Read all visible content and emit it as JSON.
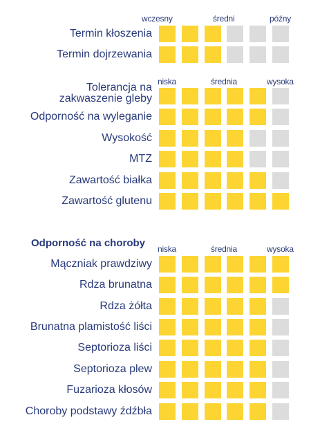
{
  "colors": {
    "filled": "#fcd533",
    "empty": "#dcdcdc",
    "text": "#283a7a"
  },
  "scales": {
    "term": {
      "low": "wczesny",
      "mid": "średni",
      "high": "późny"
    },
    "level": {
      "low": "niska",
      "mid": "średnia",
      "high": "wysoka"
    },
    "disease": {
      "low": "niska",
      "mid": "średnia",
      "high": "wysoka"
    }
  },
  "section_title": "Odporność na choroby",
  "max_score": 6,
  "term_rows": [
    {
      "label": "Termin kłoszenia",
      "score": 3
    },
    {
      "label": "Termin dojrzewania",
      "score": 3
    }
  ],
  "trait_rows": [
    {
      "label_line1": "Tolerancja na",
      "label_line2": "zakwaszenie gleby",
      "score": 5
    },
    {
      "label": "Odporność na wyleganie",
      "score": 5
    },
    {
      "label": "Wysokość",
      "score": 4
    },
    {
      "label": "MTZ",
      "score": 4
    },
    {
      "label": "Zawartość białka",
      "score": 5
    },
    {
      "label": "Zawartość glutenu",
      "score": 6
    }
  ],
  "disease_rows": [
    {
      "label": "Mączniak prawdziwy",
      "score": 6
    },
    {
      "label": "Rdza brunatna",
      "score": 6
    },
    {
      "label": "Rdza żółta",
      "score": 5
    },
    {
      "label": "Brunatna plamistość liści",
      "score": 5
    },
    {
      "label": "Septorioza liści",
      "score": 5
    },
    {
      "label": "Septorioza plew",
      "score": 5
    },
    {
      "label": "Fuzarioza kłosów",
      "score": 5
    },
    {
      "label": "Choroby podstawy źdźbła",
      "score": 5
    }
  ]
}
